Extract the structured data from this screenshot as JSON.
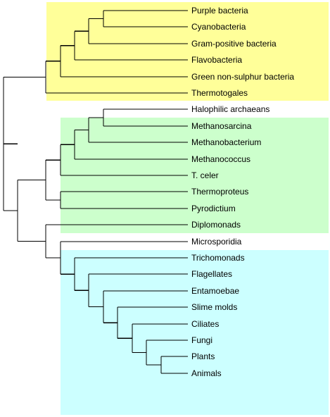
{
  "colors": {
    "bacteria_box": "#ffff99",
    "archaea_box": "#ccffcc",
    "eukaryota_box": "#ccffff",
    "branch": "#000000"
  },
  "leaves": [
    "Purple bacteria",
    "Cyanobacteria",
    "Gram-positive bacteria",
    "Flavobacteria",
    "Green non-sulphur bacteria",
    "Thermotogales",
    "Halophilic archaeans",
    "Methanosarcina",
    "Methanobacterium",
    "Methanococcus",
    "T. celer",
    "Thermoproteus",
    "Pyrodictium",
    "Diplomonads",
    "Microsporidia",
    "Trichomonads",
    "Flagellates",
    "Entamoebae",
    "Slime molds",
    "Ciliates",
    "Fungi",
    "Plants",
    "Animals"
  ],
  "groups": [
    {
      "color_key": "bacteria_box",
      "first_leaf": 0,
      "last_leaf": 5
    },
    {
      "color_key": "archaea_box",
      "first_leaf": 6,
      "last_leaf": 12
    },
    {
      "color_key": "eukaryota_box",
      "first_leaf": 13,
      "last_leaf": 22
    }
  ],
  "tree": [
    [
      [
        [
          [
            [
              [
                0,
                1
              ],
              2
            ],
            3
          ],
          4
        ],
        5
      ]
    ],
    [
      [
        [
          [
            [
              [
                6,
                7
              ],
              8
            ],
            9
          ],
          10
        ],
        [
          11,
          12
        ]
      ],
      [
        13,
        [
          14,
          [
            15,
            [
              16,
              [
                17,
                [
                  18,
                  [
                    19,
                    [
                      20,
                      [
                        21,
                        22
                      ]
                    ]
                  ]
                ]
              ]
            ]
          ]
        ]
      ]
    ]
  ]
}
